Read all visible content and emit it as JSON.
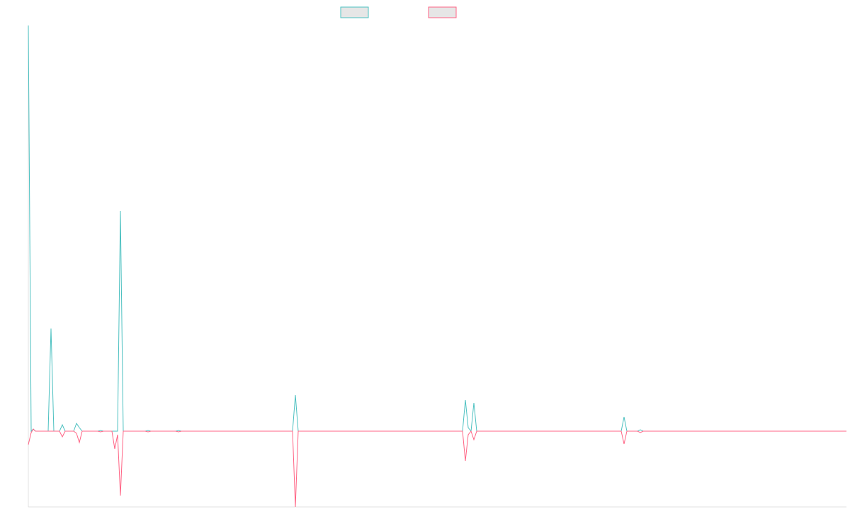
{
  "chart_data": {
    "type": "line",
    "x": [
      0,
      4,
      7,
      10,
      28,
      32,
      36,
      44,
      48,
      52,
      64,
      68,
      72,
      76,
      98,
      102,
      106,
      118,
      122,
      126,
      130,
      134,
      165,
      169,
      173,
      208,
      212,
      216,
      373,
      377,
      381,
      613,
      617,
      621,
      625,
      629,
      633,
      837,
      841,
      845,
      860,
      864,
      868,
      1155
    ],
    "xlim": [
      0,
      1155
    ],
    "ylim": [
      -107,
      573
    ],
    "series": [
      {
        "color": "#4bc0c0",
        "values": [
          573,
          0,
          3,
          0,
          0,
          145,
          0,
          0,
          9,
          0,
          0,
          11,
          5,
          0,
          0,
          1,
          0,
          0,
          0,
          0,
          311,
          0,
          0,
          1,
          0,
          0,
          1,
          0,
          0,
          51,
          0,
          0,
          44,
          5,
          0,
          40,
          0,
          0,
          20,
          0,
          0,
          2,
          0,
          0
        ]
      },
      {
        "color": "#ff6384",
        "values": [
          -19,
          -2,
          3,
          0,
          0,
          0,
          0,
          0,
          -8,
          0,
          0,
          -3,
          -16,
          0,
          0,
          -1,
          0,
          0,
          -25,
          -5,
          -91,
          0,
          0,
          -1,
          0,
          0,
          -1,
          0,
          0,
          -107,
          0,
          0,
          -42,
          -5,
          0,
          -12,
          0,
          0,
          -18,
          0,
          0,
          -2,
          0,
          0
        ]
      }
    ]
  }
}
